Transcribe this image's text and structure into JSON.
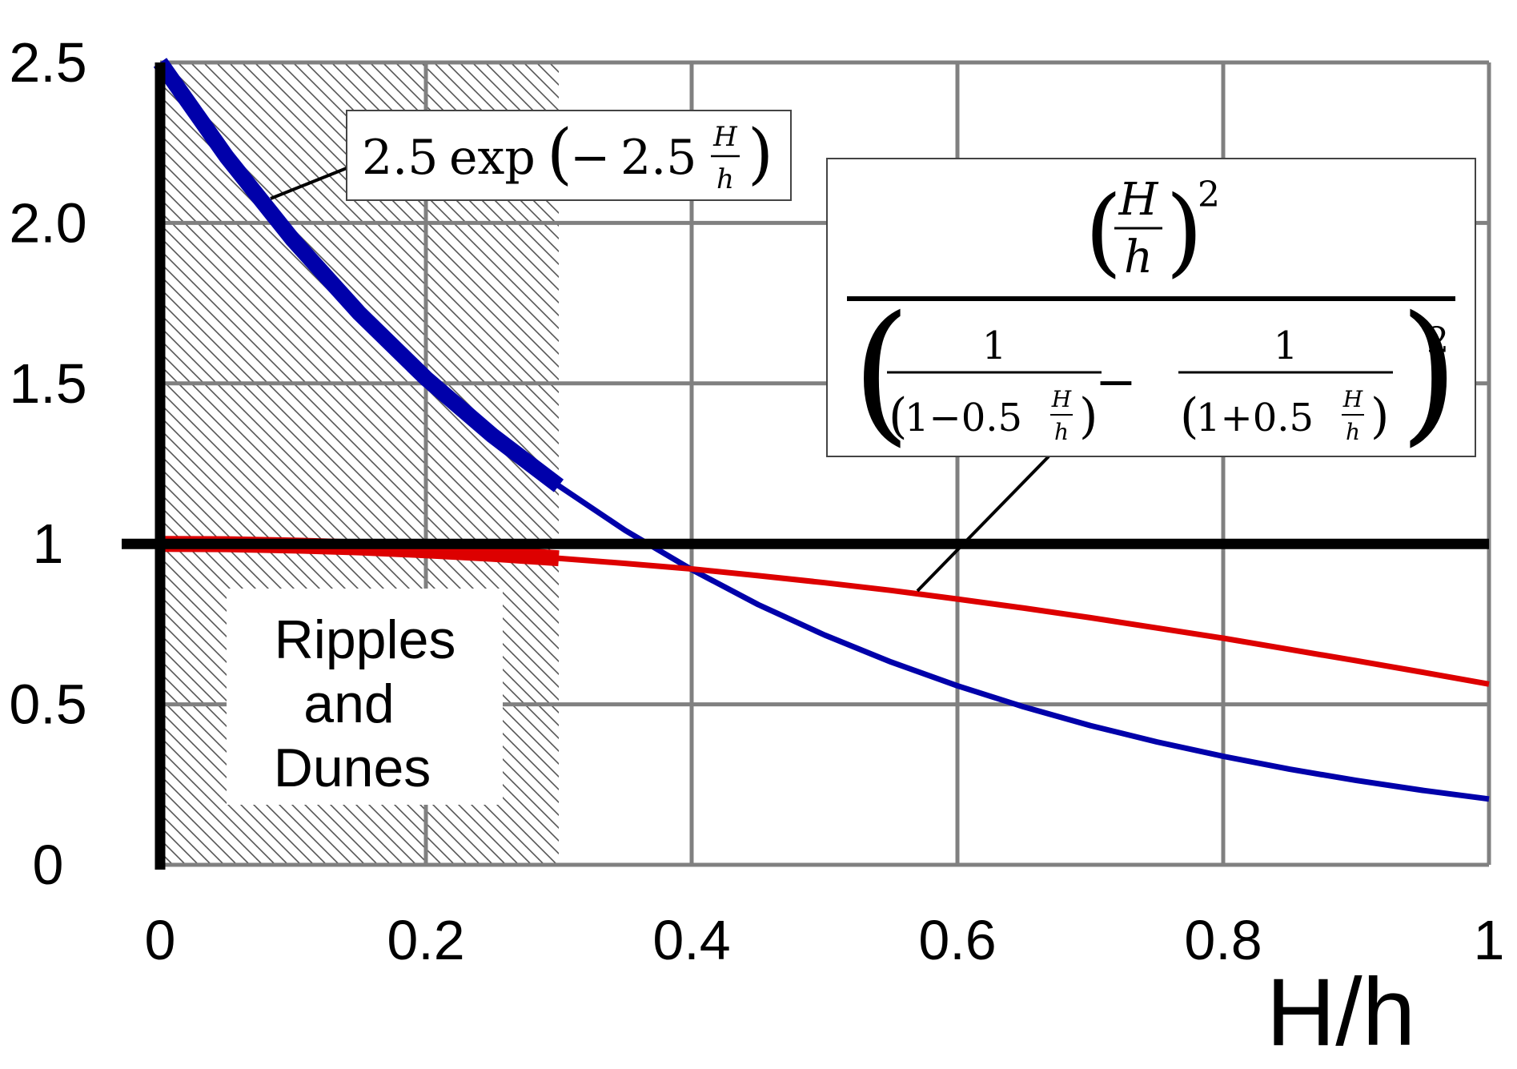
{
  "chart_data": {
    "type": "line",
    "title": "",
    "xlabel": "H/h",
    "ylabel": "",
    "xlim": [
      0,
      1
    ],
    "ylim": [
      0,
      2.5
    ],
    "grid": true,
    "x_ticks": [
      {
        "value": 0,
        "label": "0"
      },
      {
        "value": 0.2,
        "label": "0.2"
      },
      {
        "value": 0.4,
        "label": "0.4"
      },
      {
        "value": 0.6,
        "label": "0.6"
      },
      {
        "value": 0.8,
        "label": "0.8"
      },
      {
        "value": 1,
        "label": "1"
      }
    ],
    "y_ticks": [
      {
        "value": 0,
        "label": "0"
      },
      {
        "value": 0.5,
        "label": "0.5"
      },
      {
        "value": 1,
        "label": "1"
      },
      {
        "value": 1.5,
        "label": "1.5"
      },
      {
        "value": 2.0,
        "label": "2.0"
      },
      {
        "value": 2.5,
        "label": "2.5"
      }
    ],
    "reference_line": {
      "y": 1
    },
    "region": {
      "x_range": [
        0,
        0.3
      ],
      "label_lines": [
        "Ripples",
        "and",
        "Dunes"
      ]
    },
    "series": [
      {
        "formula": "2.5 exp(-2.5 H/h)",
        "color": "#0000aa",
        "highlight_x_range": [
          0,
          0.3
        ],
        "x": [
          0.0,
          0.05,
          0.1,
          0.15,
          0.2,
          0.25,
          0.3,
          0.35,
          0.4,
          0.45,
          0.5,
          0.55,
          0.6,
          0.65,
          0.7,
          0.75,
          0.8,
          0.85,
          0.9,
          0.95,
          1.0
        ],
        "y": [
          2.5,
          2.206,
          1.947,
          1.718,
          1.516,
          1.338,
          1.181,
          1.042,
          0.92,
          0.811,
          0.716,
          0.632,
          0.558,
          0.492,
          0.434,
          0.383,
          0.338,
          0.298,
          0.263,
          0.232,
          0.205
        ]
      },
      {
        "formula": "(H/h)^2 / (1/(1-0.5 H/h) - 1/(1+0.5 H/h))^2",
        "color": "#dd0000",
        "highlight_x_range": [
          0,
          0.3
        ],
        "x": [
          0.0,
          0.05,
          0.1,
          0.15,
          0.2,
          0.25,
          0.3,
          0.35,
          0.4,
          0.45,
          0.5,
          0.55,
          0.6,
          0.65,
          0.7,
          0.75,
          0.8,
          0.85,
          0.9,
          0.95,
          1.0
        ],
        "y": [
          1.0,
          0.999,
          0.995,
          0.989,
          0.98,
          0.969,
          0.955,
          0.939,
          0.922,
          0.901,
          0.879,
          0.855,
          0.828,
          0.8,
          0.77,
          0.738,
          0.706,
          0.671,
          0.636,
          0.6,
          0.563
        ]
      }
    ],
    "annotations": [
      {
        "target": "blue",
        "parts": {
          "coef": "2.5",
          "func": "exp",
          "open": "(",
          "minus": "−",
          "num": "2.5",
          "frac_top": "H",
          "frac_bottom": "h",
          "close": ")"
        }
      },
      {
        "target": "red",
        "parts": {
          "H": "H",
          "h": "h",
          "sq": "2",
          "one": "1",
          "one_b": "1",
          "lhs_den": "1−0.5",
          "rhs_den": "1+0.5",
          "minus": "−",
          "open": "(",
          "close": ")"
        }
      }
    ]
  }
}
